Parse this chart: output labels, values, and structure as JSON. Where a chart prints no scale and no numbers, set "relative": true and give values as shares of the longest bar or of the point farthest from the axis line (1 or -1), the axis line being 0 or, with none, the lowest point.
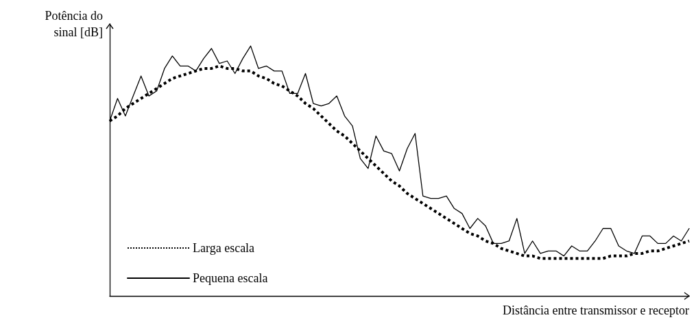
{
  "chart_data": {
    "type": "line",
    "relative": true,
    "xlabel": "Distância entre transmissor e receptor",
    "ylabel": "Potência do\nsinal [dB]",
    "legend": "bottom left",
    "marker": "none",
    "categories": [
      null,
      null,
      null,
      null,
      null,
      null,
      null,
      null,
      null,
      null,
      null,
      null,
      null,
      null,
      null,
      null,
      null,
      null,
      null,
      null,
      null,
      null,
      null,
      null,
      null,
      null,
      null,
      null,
      null,
      null,
      null,
      null,
      null,
      null,
      null,
      null,
      null,
      null,
      null,
      null,
      null,
      null,
      null,
      null,
      null,
      null,
      null,
      null,
      null,
      null,
      null,
      null,
      null,
      null,
      null,
      null,
      null,
      null,
      null,
      null,
      null,
      null,
      null,
      null,
      null,
      null,
      null,
      null,
      null,
      null,
      null,
      null,
      null,
      null,
      null
    ],
    "series": [
      {
        "name": "Larga escala",
        "color": "#000000",
        "line_style": "dotted",
        "values": [
          0.7,
          0.72,
          0.75,
          0.77,
          0.79,
          0.81,
          0.83,
          0.85,
          0.87,
          0.88,
          0.89,
          0.9,
          0.91,
          0.91,
          0.92,
          0.91,
          0.91,
          0.9,
          0.9,
          0.88,
          0.87,
          0.85,
          0.84,
          0.82,
          0.8,
          0.77,
          0.75,
          0.72,
          0.69,
          0.66,
          0.64,
          0.61,
          0.58,
          0.55,
          0.52,
          0.49,
          0.46,
          0.44,
          0.41,
          0.39,
          0.37,
          0.35,
          0.33,
          0.31,
          0.29,
          0.27,
          0.25,
          0.24,
          0.22,
          0.21,
          0.19,
          0.18,
          0.17,
          0.16,
          0.16,
          0.15,
          0.15,
          0.15,
          0.15,
          0.15,
          0.15,
          0.15,
          0.15,
          0.15,
          0.16,
          0.16,
          0.16,
          0.17,
          0.17,
          0.18,
          0.18,
          0.19,
          0.2,
          0.21,
          0.22
        ]
      },
      {
        "name": "Pequena escala",
        "color": "#000000",
        "line_style": "solid",
        "values": [
          0.7,
          0.79,
          0.72,
          0.8,
          0.88,
          0.8,
          0.82,
          0.91,
          0.96,
          0.92,
          0.92,
          0.9,
          0.95,
          0.99,
          0.93,
          0.94,
          0.89,
          0.95,
          1.0,
          0.91,
          0.92,
          0.9,
          0.9,
          0.81,
          0.81,
          0.89,
          0.77,
          0.76,
          0.77,
          0.8,
          0.72,
          0.68,
          0.55,
          0.51,
          0.64,
          0.58,
          0.57,
          0.5,
          0.59,
          0.65,
          0.4,
          0.39,
          0.39,
          0.4,
          0.35,
          0.33,
          0.27,
          0.31,
          0.28,
          0.21,
          0.21,
          0.22,
          0.31,
          0.17,
          0.22,
          0.17,
          0.18,
          0.18,
          0.16,
          0.2,
          0.18,
          0.18,
          0.22,
          0.27,
          0.27,
          0.2,
          0.18,
          0.17,
          0.24,
          0.24,
          0.21,
          0.21,
          0.24,
          0.22,
          0.27
        ]
      }
    ]
  }
}
